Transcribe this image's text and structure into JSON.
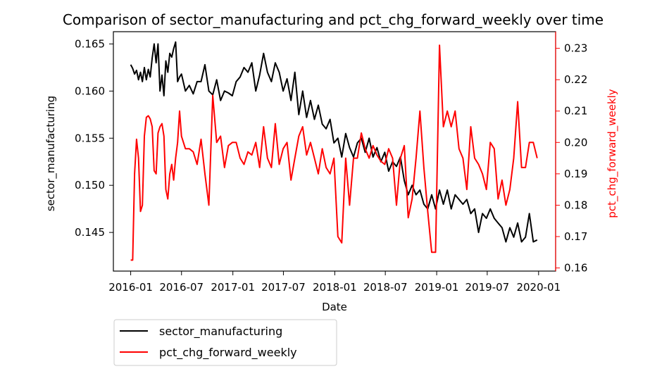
{
  "chart_data": {
    "type": "line",
    "title": "Comparison of sector_manufacturing and pct_chg_forward_weekly over time",
    "xlabel": "Date",
    "ylabel_left": "sector_manufacturing",
    "ylabel_right": "pct_chg_forward_weekly",
    "x_ticks": [
      "2016-01",
      "2016-07",
      "2017-01",
      "2017-07",
      "2018-01",
      "2018-07",
      "2019-01",
      "2019-07",
      "2020-01"
    ],
    "y_left_ticks": [
      "0.145",
      "0.150",
      "0.155",
      "0.160",
      "0.165"
    ],
    "y_right_ticks": [
      "0.16",
      "0.17",
      "0.18",
      "0.19",
      "0.20",
      "0.21",
      "0.22",
      "0.23"
    ],
    "ylim_left": [
      0.1409,
      0.1663
    ],
    "ylim_right": [
      0.159,
      0.2353
    ],
    "xlim": [
      "2015-10-31",
      "2020-03-02"
    ],
    "grid": false,
    "legend_placement": "below",
    "colors": {
      "series1": "#000000",
      "series2": "#ff0000",
      "right_axis": "#ff0000"
    },
    "series": [
      {
        "name": "sector_manufacturing",
        "axis": "left",
        "color": "#000000",
        "x": [
          "2016-01-01",
          "2016-01-08",
          "2016-01-15",
          "2016-01-22",
          "2016-01-29",
          "2016-02-05",
          "2016-02-12",
          "2016-02-19",
          "2016-02-26",
          "2016-03-04",
          "2016-03-11",
          "2016-03-18",
          "2016-03-25",
          "2016-04-01",
          "2016-04-08",
          "2016-04-15",
          "2016-04-22",
          "2016-04-29",
          "2016-05-06",
          "2016-05-13",
          "2016-05-20",
          "2016-05-27",
          "2016-06-03",
          "2016-06-10",
          "2016-06-17",
          "2016-06-24",
          "2016-07-01",
          "2016-07-15",
          "2016-07-29",
          "2016-08-12",
          "2016-08-26",
          "2016-09-09",
          "2016-09-23",
          "2016-10-07",
          "2016-10-21",
          "2016-11-04",
          "2016-11-18",
          "2016-12-02",
          "2016-12-16",
          "2016-12-30",
          "2017-01-13",
          "2017-01-27",
          "2017-02-10",
          "2017-02-24",
          "2017-03-10",
          "2017-03-24",
          "2017-04-07",
          "2017-04-21",
          "2017-05-05",
          "2017-05-19",
          "2017-06-02",
          "2017-06-16",
          "2017-06-30",
          "2017-07-14",
          "2017-07-28",
          "2017-08-11",
          "2017-08-25",
          "2017-09-08",
          "2017-09-22",
          "2017-10-06",
          "2017-10-20",
          "2017-11-03",
          "2017-11-17",
          "2017-12-01",
          "2017-12-15",
          "2017-12-29",
          "2018-01-12",
          "2018-01-26",
          "2018-02-09",
          "2018-02-23",
          "2018-03-09",
          "2018-03-23",
          "2018-04-06",
          "2018-04-20",
          "2018-05-04",
          "2018-05-18",
          "2018-06-01",
          "2018-06-15",
          "2018-06-29",
          "2018-07-13",
          "2018-07-27",
          "2018-08-10",
          "2018-08-24",
          "2018-09-07",
          "2018-09-21",
          "2018-10-05",
          "2018-10-19",
          "2018-11-02",
          "2018-11-16",
          "2018-11-30",
          "2018-12-14",
          "2018-12-28",
          "2019-01-11",
          "2019-01-25",
          "2019-02-08",
          "2019-02-22",
          "2019-03-08",
          "2019-03-22",
          "2019-04-05",
          "2019-04-19",
          "2019-05-03",
          "2019-05-17",
          "2019-05-31",
          "2019-06-14",
          "2019-06-28",
          "2019-07-12",
          "2019-07-26",
          "2019-08-09",
          "2019-08-23",
          "2019-09-06",
          "2019-09-20",
          "2019-10-04",
          "2019-10-18",
          "2019-11-01",
          "2019-11-15",
          "2019-11-29",
          "2019-12-13",
          "2019-12-27"
        ],
        "values": [
          0.1628,
          0.1624,
          0.1618,
          0.1622,
          0.1612,
          0.162,
          0.161,
          0.1625,
          0.1612,
          0.1623,
          0.1615,
          0.1635,
          0.165,
          0.163,
          0.165,
          0.16,
          0.1617,
          0.1595,
          0.1632,
          0.162,
          0.164,
          0.1636,
          0.1645,
          0.1652,
          0.161,
          0.1615,
          0.1618,
          0.16,
          0.1606,
          0.1597,
          0.161,
          0.161,
          0.1628,
          0.16,
          0.1596,
          0.1612,
          0.159,
          0.16,
          0.1598,
          0.1595,
          0.161,
          0.1615,
          0.1625,
          0.162,
          0.163,
          0.16,
          0.1617,
          0.164,
          0.162,
          0.161,
          0.163,
          0.162,
          0.16,
          0.1613,
          0.159,
          0.162,
          0.1575,
          0.16,
          0.1572,
          0.159,
          0.157,
          0.1585,
          0.1565,
          0.156,
          0.157,
          0.1545,
          0.155,
          0.153,
          0.1555,
          0.154,
          0.153,
          0.1545,
          0.155,
          0.1535,
          0.155,
          0.153,
          0.154,
          0.1525,
          0.1535,
          0.1515,
          0.1525,
          0.152,
          0.153,
          0.1505,
          0.149,
          0.15,
          0.149,
          0.1495,
          0.148,
          0.1475,
          0.149,
          0.1475,
          0.1495,
          0.148,
          0.1495,
          0.1475,
          0.149,
          0.1485,
          0.148,
          0.1485,
          0.147,
          0.1475,
          0.145,
          0.147,
          0.1465,
          0.1475,
          0.1465,
          0.146,
          0.1455,
          0.144,
          0.1455,
          0.1445,
          0.146,
          0.144,
          0.1445,
          0.147,
          0.144,
          0.1442
        ]
      },
      {
        "name": "pct_chg_forward_weekly",
        "axis": "right",
        "color": "#ff0000",
        "x": [
          "2016-01-01",
          "2016-01-08",
          "2016-01-15",
          "2016-01-22",
          "2016-01-29",
          "2016-02-05",
          "2016-02-12",
          "2016-02-19",
          "2016-02-26",
          "2016-03-04",
          "2016-03-11",
          "2016-03-18",
          "2016-03-25",
          "2016-04-01",
          "2016-04-08",
          "2016-04-15",
          "2016-04-22",
          "2016-04-29",
          "2016-05-06",
          "2016-05-13",
          "2016-05-20",
          "2016-05-27",
          "2016-06-03",
          "2016-06-10",
          "2016-06-17",
          "2016-06-24",
          "2016-07-01",
          "2016-07-15",
          "2016-07-29",
          "2016-08-12",
          "2016-08-26",
          "2016-09-09",
          "2016-09-23",
          "2016-10-07",
          "2016-10-21",
          "2016-11-04",
          "2016-11-18",
          "2016-12-02",
          "2016-12-16",
          "2016-12-30",
          "2017-01-13",
          "2017-01-27",
          "2017-02-10",
          "2017-02-24",
          "2017-03-10",
          "2017-03-24",
          "2017-04-07",
          "2017-04-21",
          "2017-05-05",
          "2017-05-19",
          "2017-06-02",
          "2017-06-16",
          "2017-06-30",
          "2017-07-14",
          "2017-07-28",
          "2017-08-11",
          "2017-08-25",
          "2017-09-08",
          "2017-09-22",
          "2017-10-06",
          "2017-10-20",
          "2017-11-03",
          "2017-11-17",
          "2017-12-01",
          "2017-12-15",
          "2017-12-29",
          "2018-01-12",
          "2018-01-26",
          "2018-02-09",
          "2018-02-23",
          "2018-03-09",
          "2018-03-23",
          "2018-04-06",
          "2018-04-20",
          "2018-05-04",
          "2018-05-18",
          "2018-06-01",
          "2018-06-15",
          "2018-06-29",
          "2018-07-13",
          "2018-07-27",
          "2018-08-10",
          "2018-08-24",
          "2018-09-07",
          "2018-09-21",
          "2018-10-05",
          "2018-10-19",
          "2018-11-02",
          "2018-11-16",
          "2018-11-30",
          "2018-12-14",
          "2018-12-28",
          "2019-01-11",
          "2019-01-25",
          "2019-02-08",
          "2019-02-22",
          "2019-03-08",
          "2019-03-22",
          "2019-04-05",
          "2019-04-19",
          "2019-05-03",
          "2019-05-17",
          "2019-05-31",
          "2019-06-14",
          "2019-06-28",
          "2019-07-12",
          "2019-07-26",
          "2019-08-09",
          "2019-08-23",
          "2019-09-06",
          "2019-09-20",
          "2019-10-04",
          "2019-10-18",
          "2019-11-01",
          "2019-11-15",
          "2019-11-29",
          "2019-12-13",
          "2019-12-27"
        ],
        "values": [
          0.1625,
          0.1625,
          0.19,
          0.201,
          0.195,
          0.178,
          0.18,
          0.202,
          0.208,
          0.2085,
          0.2075,
          0.205,
          0.191,
          0.19,
          0.203,
          0.205,
          0.206,
          0.202,
          0.185,
          0.182,
          0.19,
          0.193,
          0.188,
          0.195,
          0.2,
          0.21,
          0.202,
          0.198,
          0.198,
          0.197,
          0.193,
          0.201,
          0.19,
          0.18,
          0.215,
          0.2,
          0.202,
          0.192,
          0.199,
          0.2,
          0.2,
          0.195,
          0.193,
          0.197,
          0.196,
          0.2,
          0.192,
          0.205,
          0.195,
          0.192,
          0.206,
          0.193,
          0.198,
          0.2,
          0.188,
          0.195,
          0.202,
          0.205,
          0.196,
          0.2,
          0.195,
          0.19,
          0.198,
          0.192,
          0.19,
          0.195,
          0.17,
          0.168,
          0.195,
          0.18,
          0.195,
          0.195,
          0.203,
          0.198,
          0.195,
          0.199,
          0.196,
          0.194,
          0.193,
          0.198,
          0.195,
          0.18,
          0.195,
          0.199,
          0.176,
          0.182,
          0.195,
          0.21,
          0.192,
          0.178,
          0.165,
          0.165,
          0.231,
          0.205,
          0.21,
          0.205,
          0.21,
          0.198,
          0.195,
          0.185,
          0.205,
          0.195,
          0.193,
          0.19,
          0.185,
          0.2,
          0.198,
          0.182,
          0.188,
          0.18,
          0.185,
          0.195,
          0.213,
          0.192,
          0.192,
          0.2,
          0.2,
          0.195
        ]
      }
    ]
  }
}
